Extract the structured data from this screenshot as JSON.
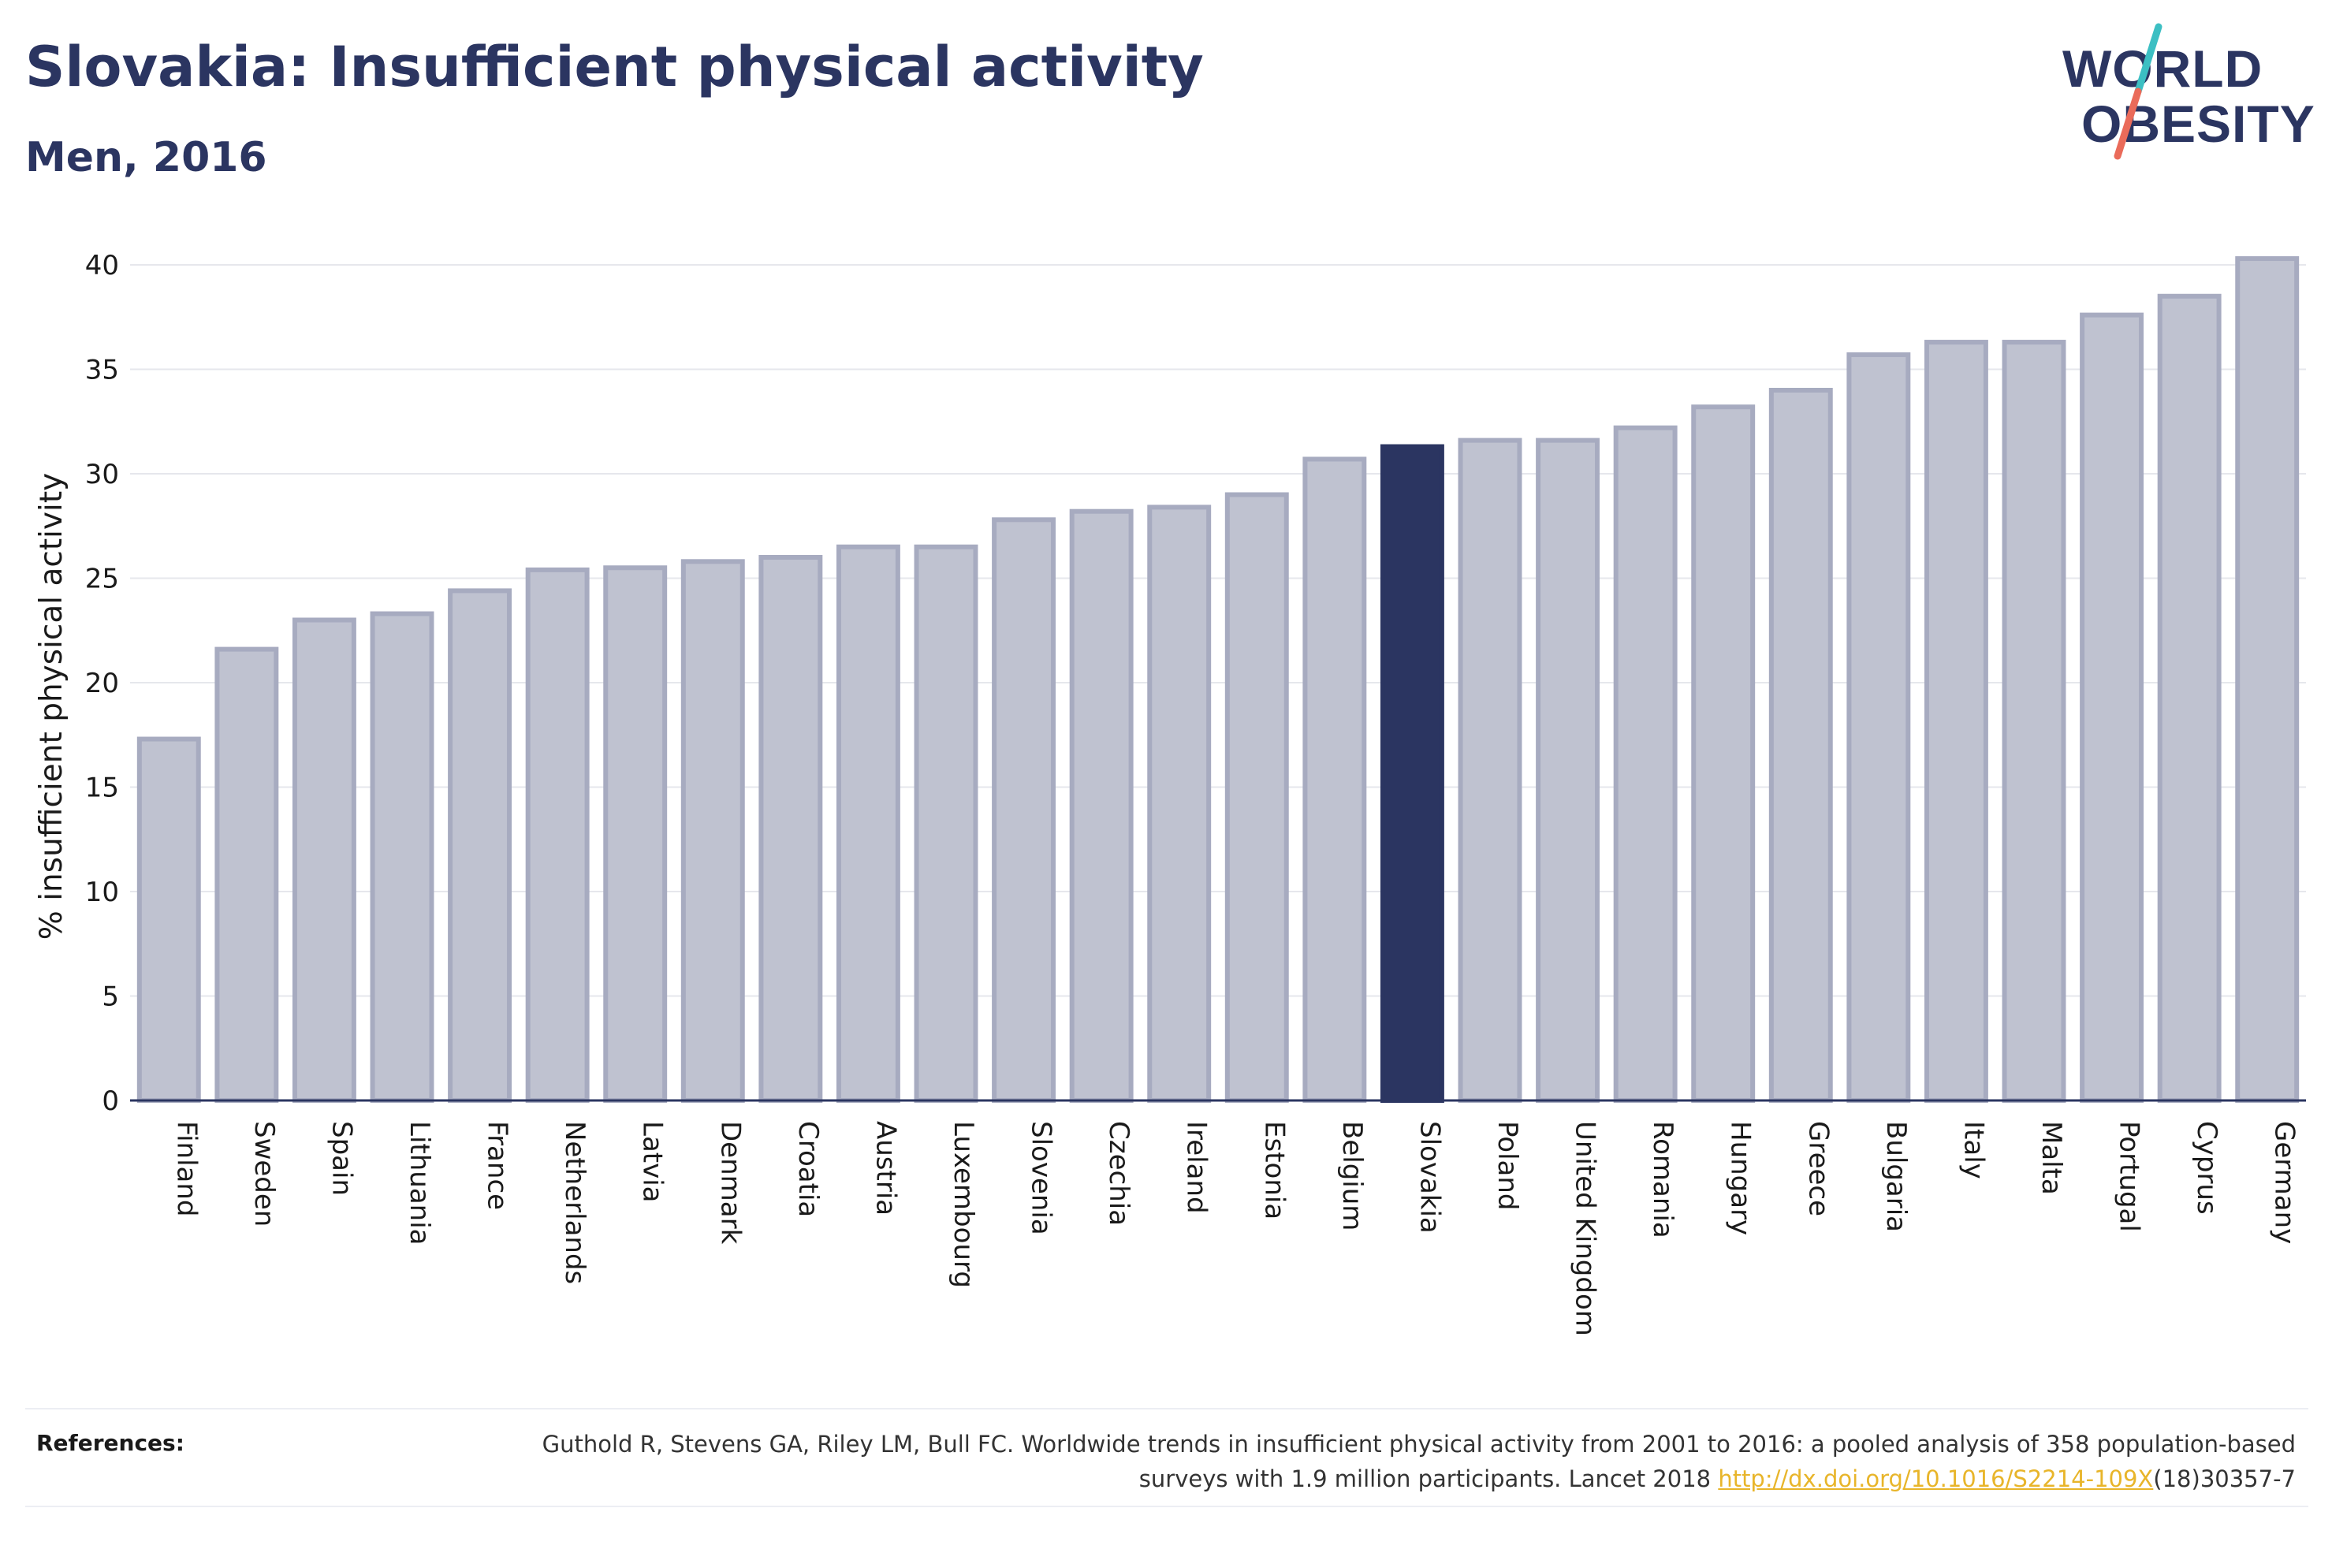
{
  "header": {
    "title": "Slovakia: Insufficient physical activity",
    "subtitle": "Men, 2016"
  },
  "logo": {
    "line1": "WORLD",
    "line2": "OBESITY",
    "text_color": "#2b3561",
    "slash_colors": [
      "#3cbfc3",
      "#ea6b5a"
    ]
  },
  "references": {
    "label": "References:",
    "text_before_link": "Guthold R, Stevens GA, Riley LM, Bull FC. Worldwide trends in insufficient physical activity from 2001 to 2016: a pooled analysis of 358 population-based surveys with 1.9 million participants. Lancet 2018 ",
    "link_text": "http://dx.doi.org/10.1016/S2214-109X",
    "text_after_link": "(18)30357-7"
  },
  "chart_data": {
    "type": "bar",
    "ylabel": "% insufficient physical activity",
    "xlabel": "",
    "ylim": [
      0,
      40
    ],
    "yticks": [
      0,
      5,
      10,
      15,
      20,
      25,
      30,
      35,
      40
    ],
    "grid": true,
    "highlight": "Slovakia",
    "colors": {
      "bar_fill": "#bfc2d0",
      "bar_stroke": "#a7abc0",
      "highlight_fill": "#2b3561",
      "axis": "#2b3561",
      "grid": "#e6e7ec"
    },
    "categories": [
      "Finland",
      "Sweden",
      "Spain",
      "Lithuania",
      "France",
      "Netherlands",
      "Latvia",
      "Denmark",
      "Croatia",
      "Austria",
      "Luxembourg",
      "Slovenia",
      "Czechia",
      "Ireland",
      "Estonia",
      "Belgium",
      "Slovakia",
      "Poland",
      "United Kingdom",
      "Romania",
      "Hungary",
      "Greece",
      "Bulgaria",
      "Italy",
      "Malta",
      "Portugal",
      "Cyprus",
      "Germany"
    ],
    "values": [
      17.3,
      21.6,
      23.0,
      23.3,
      24.4,
      25.4,
      25.5,
      25.8,
      26.0,
      26.5,
      26.5,
      27.8,
      28.2,
      28.4,
      29.0,
      30.7,
      31.3,
      31.6,
      31.6,
      32.2,
      33.2,
      34.0,
      35.7,
      36.3,
      36.3,
      37.6,
      38.5,
      40.3
    ]
  }
}
